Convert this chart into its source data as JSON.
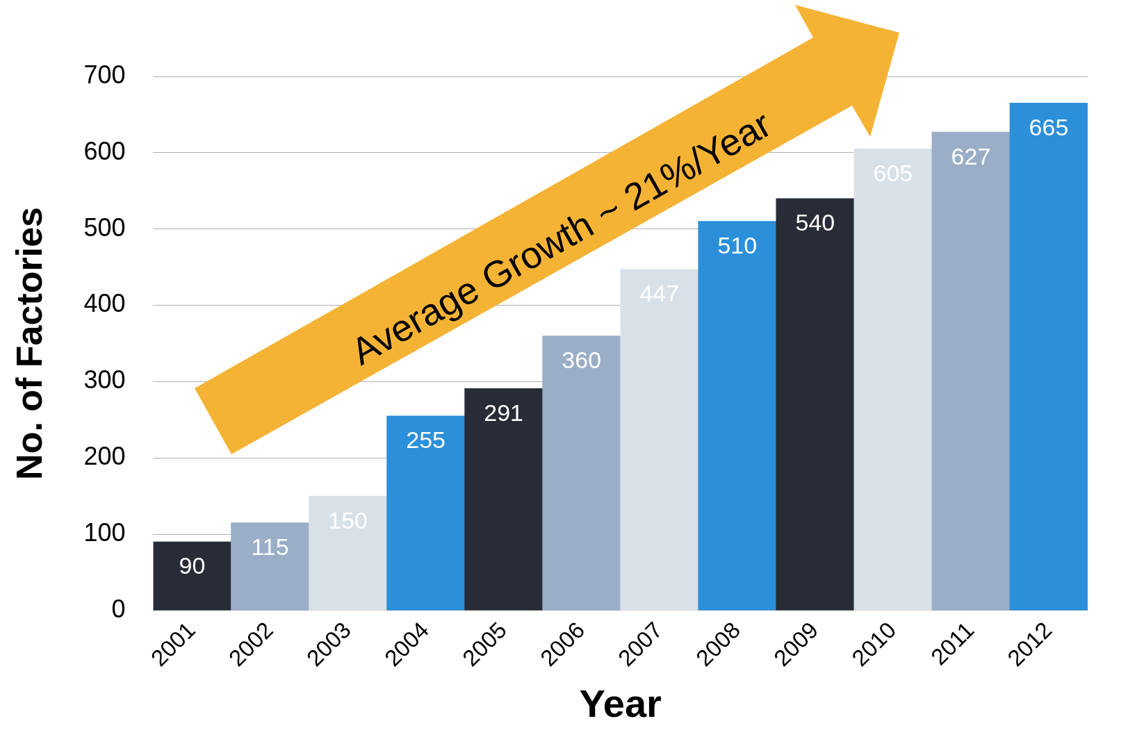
{
  "chart_data": {
    "type": "bar",
    "xlabel": "Year",
    "ylabel": "No. of Factories",
    "categories": [
      "2001",
      "2002",
      "2003",
      "2004",
      "2005",
      "2006",
      "2007",
      "2008",
      "2009",
      "2010",
      "2011",
      "2012"
    ],
    "values": [
      90,
      115,
      150,
      255,
      291,
      360,
      447,
      510,
      540,
      605,
      627,
      665
    ],
    "colors": [
      "#282c37",
      "#9baec8",
      "#d9e1e8",
      "#2b90d9",
      "#282c37",
      "#9baec8",
      "#d9e1e8",
      "#2b90d9",
      "#282c37",
      "#d9e1e8",
      "#9baec8",
      "#2b90d9"
    ],
    "ylim": [
      0,
      700
    ],
    "yticks": [
      0,
      100,
      200,
      300,
      400,
      500,
      600,
      700
    ],
    "grid": "y",
    "legend": false,
    "data_labels": true,
    "annotations": [
      "Average Growth ~ 21%/Year"
    ]
  }
}
